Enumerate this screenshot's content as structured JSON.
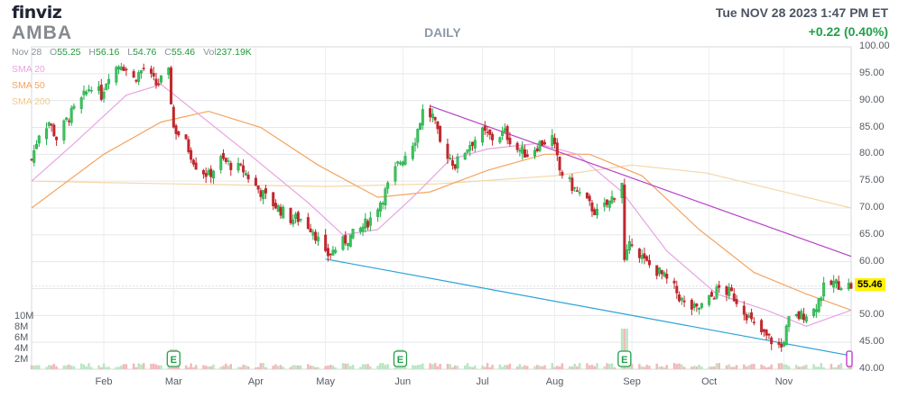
{
  "header": {
    "logo": "finviz",
    "ticker": "AMBA",
    "period": "DAILY",
    "datetime": "Tue NOV 28 2023 1:47 PM ET",
    "change": "+0.22 (0.40%)"
  },
  "ohlc": {
    "date": "Nov 28",
    "open_label": "O",
    "open": "55.25",
    "high_label": "H",
    "high": "56.16",
    "low_label": "L",
    "low": "54.76",
    "close_label": "C",
    "close": "55.46",
    "vol_label": "Vol",
    "volume": "237.19K"
  },
  "legend": {
    "sma20": {
      "label": "SMA 20",
      "color": "#e8a4e0"
    },
    "sma50": {
      "label": "SMA 50",
      "color": "#f4a460"
    },
    "sma200": {
      "label": "SMA 200",
      "color": "#f7d9a2"
    }
  },
  "last_price": "55.46",
  "earnings_marker": "E",
  "chart_data": {
    "type": "candlestick",
    "ylim": [
      40,
      100
    ],
    "y_ticks": [
      "100.00",
      "95.00",
      "90.00",
      "85.00",
      "80.00",
      "75.00",
      "70.00",
      "65.00",
      "60.00",
      "55.00",
      "50.00",
      "45.00",
      "40.00"
    ],
    "x_ticks": [
      "Feb",
      "Mar",
      "Apr",
      "May",
      "Jun",
      "Jul",
      "Aug",
      "Sep",
      "Oct",
      "Nov"
    ],
    "volume_ticks": [
      "10M",
      "8M",
      "6M",
      "4M",
      "2M"
    ],
    "up_color": "#22a94a",
    "down_color": "#c0272d",
    "price_path": [
      [
        "2023-01-03",
        79
      ],
      [
        "2023-01-06",
        84
      ],
      [
        "2023-01-10",
        86
      ],
      [
        "2023-01-13",
        83
      ],
      [
        "2023-01-18",
        87
      ],
      [
        "2023-01-23",
        90
      ],
      [
        "2023-01-27",
        93
      ],
      [
        "2023-01-31",
        91
      ],
      [
        "2023-02-03",
        95
      ],
      [
        "2023-02-08",
        97
      ],
      [
        "2023-02-13",
        94
      ],
      [
        "2023-02-17",
        96
      ],
      [
        "2023-02-22",
        93
      ],
      [
        "2023-02-27",
        95
      ],
      [
        "2023-03-01",
        85
      ],
      [
        "2023-03-06",
        82
      ],
      [
        "2023-03-10",
        78
      ],
      [
        "2023-03-15",
        76
      ],
      [
        "2023-03-20",
        79
      ],
      [
        "2023-03-24",
        78
      ],
      [
        "2023-03-29",
        77
      ],
      [
        "2023-04-03",
        74
      ],
      [
        "2023-04-07",
        72
      ],
      [
        "2023-04-12",
        70
      ],
      [
        "2023-04-17",
        68
      ],
      [
        "2023-04-21",
        68
      ],
      [
        "2023-04-26",
        66
      ],
      [
        "2023-05-01",
        61
      ],
      [
        "2023-05-04",
        62
      ],
      [
        "2023-05-09",
        64
      ],
      [
        "2023-05-15",
        66
      ],
      [
        "2023-05-19",
        68
      ],
      [
        "2023-05-24",
        72
      ],
      [
        "2023-05-30",
        78
      ],
      [
        "2023-06-02",
        80
      ],
      [
        "2023-06-06",
        83
      ],
      [
        "2023-06-09",
        88
      ],
      [
        "2023-06-13",
        87
      ],
      [
        "2023-06-16",
        82
      ],
      [
        "2023-06-22",
        78
      ],
      [
        "2023-06-28",
        82
      ],
      [
        "2023-07-03",
        84
      ],
      [
        "2023-07-07",
        83
      ],
      [
        "2023-07-12",
        84
      ],
      [
        "2023-07-17",
        81
      ],
      [
        "2023-07-21",
        80
      ],
      [
        "2023-07-26",
        82
      ],
      [
        "2023-07-31",
        83
      ],
      [
        "2023-08-03",
        77
      ],
      [
        "2023-08-08",
        74
      ],
      [
        "2023-08-14",
        71
      ],
      [
        "2023-08-18",
        69
      ],
      [
        "2023-08-23",
        71
      ],
      [
        "2023-08-28",
        75
      ],
      [
        "2023-08-29",
        60
      ],
      [
        "2023-09-01",
        64
      ],
      [
        "2023-09-06",
        60
      ],
      [
        "2023-09-12",
        58
      ],
      [
        "2023-09-18",
        55
      ],
      [
        "2023-09-22",
        52
      ],
      [
        "2023-09-27",
        51
      ],
      [
        "2023-10-02",
        53
      ],
      [
        "2023-10-06",
        55
      ],
      [
        "2023-10-11",
        54
      ],
      [
        "2023-10-16",
        51
      ],
      [
        "2023-10-20",
        48
      ],
      [
        "2023-10-25",
        46
      ],
      [
        "2023-10-31",
        44
      ],
      [
        "2023-11-03",
        49
      ],
      [
        "2023-11-08",
        50
      ],
      [
        "2023-11-13",
        51
      ],
      [
        "2023-11-17",
        55
      ],
      [
        "2023-11-21",
        56
      ],
      [
        "2023-11-28",
        55.46
      ]
    ],
    "sma20": [
      [
        "2023-01-03",
        75
      ],
      [
        "2023-01-20",
        82
      ],
      [
        "2023-02-10",
        91
      ],
      [
        "2023-02-24",
        93
      ],
      [
        "2023-03-15",
        86
      ],
      [
        "2023-04-03",
        79
      ],
      [
        "2023-04-24",
        71
      ],
      [
        "2023-05-08",
        65
      ],
      [
        "2023-05-22",
        66
      ],
      [
        "2023-06-05",
        72
      ],
      [
        "2023-06-20",
        79
      ],
      [
        "2023-07-05",
        81
      ],
      [
        "2023-07-25",
        82
      ],
      [
        "2023-08-10",
        80
      ],
      [
        "2023-08-28",
        73
      ],
      [
        "2023-09-15",
        62
      ],
      [
        "2023-10-05",
        54
      ],
      [
        "2023-10-25",
        51
      ],
      [
        "2023-11-10",
        48
      ],
      [
        "2023-11-28",
        51
      ]
    ],
    "sma50": [
      [
        "2023-01-03",
        70
      ],
      [
        "2023-02-01",
        80
      ],
      [
        "2023-02-24",
        86
      ],
      [
        "2023-03-15",
        88
      ],
      [
        "2023-04-05",
        85
      ],
      [
        "2023-04-28",
        78
      ],
      [
        "2023-05-22",
        72
      ],
      [
        "2023-06-12",
        73
      ],
      [
        "2023-07-05",
        77
      ],
      [
        "2023-07-28",
        80
      ],
      [
        "2023-08-15",
        80
      ],
      [
        "2023-09-05",
        76
      ],
      [
        "2023-09-28",
        66
      ],
      [
        "2023-10-20",
        58
      ],
      [
        "2023-11-10",
        54
      ],
      [
        "2023-11-28",
        51
      ]
    ],
    "sma200": [
      [
        "2023-01-03",
        75
      ],
      [
        "2023-03-01",
        74.5
      ],
      [
        "2023-05-01",
        74
      ],
      [
        "2023-06-15",
        74.5
      ],
      [
        "2023-08-01",
        76
      ],
      [
        "2023-09-01",
        78
      ],
      [
        "2023-10-01",
        76.5
      ],
      [
        "2023-11-01",
        73
      ],
      [
        "2023-11-28",
        70
      ]
    ],
    "trendlines": [
      {
        "color": "#b73fc9",
        "points": [
          [
            "2023-06-12",
            89
          ],
          [
            "2023-11-28",
            61
          ]
        ]
      },
      {
        "color": "#2aa3d8",
        "points": [
          [
            "2023-05-01",
            60.5
          ],
          [
            "2023-11-28",
            42.5
          ]
        ]
      }
    ],
    "earnings_dates": [
      "2023-03-01",
      "2023-05-31",
      "2023-08-29"
    ],
    "volume_spike_dates": [
      "2023-03-01",
      "2023-05-31",
      "2023-08-29"
    ]
  }
}
